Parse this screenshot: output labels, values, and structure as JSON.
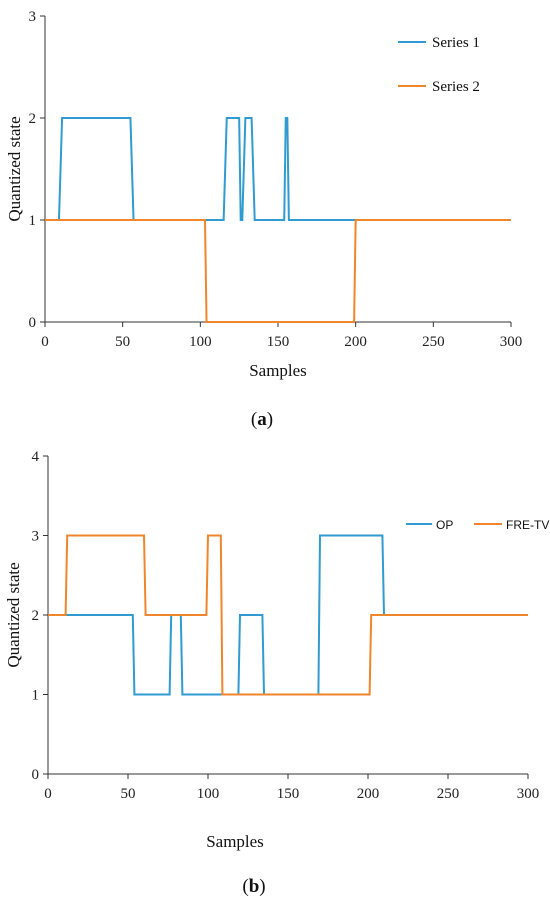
{
  "chart_data": [
    {
      "type": "line",
      "panel_label": {
        "open": "(",
        "letter": "a",
        "close": ")"
      },
      "xlabel": "Samples",
      "ylabel": "Quantized  state",
      "xlim": [
        0,
        300
      ],
      "ylim": [
        0,
        3
      ],
      "xticks": [
        0,
        50,
        100,
        150,
        200,
        250,
        300
      ],
      "yticks": [
        0,
        1,
        2,
        3
      ],
      "grid": false,
      "legend_position": "top-right",
      "series": [
        {
          "name": "Series 1",
          "color": "#2f9bd0",
          "x": [
            0,
            9,
            11,
            55,
            57,
            115,
            117,
            125,
            126,
            127,
            129,
            133,
            135,
            154,
            155,
            156,
            157,
            300
          ],
          "y": [
            1,
            1,
            2,
            2,
            1,
            1,
            2,
            2,
            1,
            1,
            2,
            2,
            1,
            1,
            2,
            2,
            1,
            1
          ]
        },
        {
          "name": "Series 2",
          "color": "#f0862b",
          "x": [
            0,
            103,
            104,
            199,
            200,
            300
          ],
          "y": [
            1,
            1,
            0,
            0,
            1,
            1
          ]
        }
      ]
    },
    {
      "type": "line",
      "panel_label": {
        "open": "(",
        "letter": "b",
        "close": ")"
      },
      "xlabel": "Samples",
      "ylabel": "Quantized state",
      "xlim": [
        0,
        300
      ],
      "ylim": [
        0,
        4
      ],
      "xticks": [
        0,
        50,
        100,
        150,
        200,
        250,
        300
      ],
      "yticks": [
        0,
        1,
        2,
        3,
        4
      ],
      "grid": false,
      "legend_position": "top-right",
      "series": [
        {
          "name": "OP",
          "color": "#2f9bd0",
          "x": [
            0,
            53,
            54,
            76,
            77,
            83,
            84,
            119,
            120,
            134,
            135,
            169,
            170,
            209,
            210,
            300
          ],
          "y": [
            2,
            2,
            1,
            1,
            2,
            2,
            1,
            1,
            2,
            2,
            1,
            1,
            3,
            3,
            2,
            2
          ]
        },
        {
          "name": "FRE-TV",
          "color": "#f0862b",
          "x": [
            0,
            11,
            12,
            60,
            61,
            99,
            100,
            108,
            109,
            201,
            202,
            300
          ],
          "y": [
            2,
            2,
            3,
            3,
            2,
            2,
            3,
            3,
            1,
            1,
            2,
            2
          ]
        }
      ]
    }
  ]
}
